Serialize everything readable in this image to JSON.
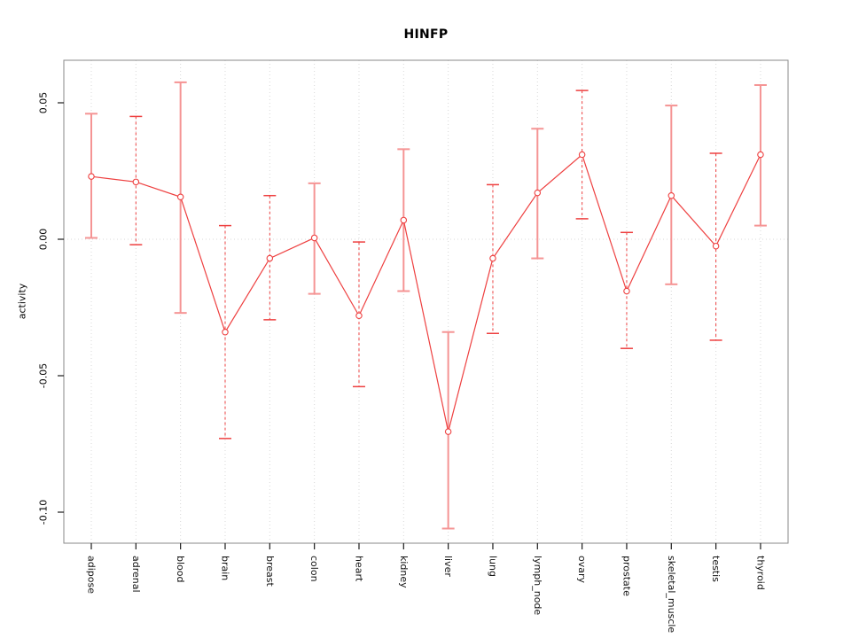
{
  "chart_data": {
    "type": "line",
    "title": "HINFP",
    "ylabel": "activity",
    "xlabel": "",
    "legend": "none",
    "grid": "vertical dotted gridline at each category; dotted horizontal line at y=0",
    "categories": [
      "adipose",
      "adrenal",
      "blood",
      "brain",
      "breast",
      "colon",
      "heart",
      "kidney",
      "liver",
      "lung",
      "lymph_node",
      "ovary",
      "prostate",
      "skeletal_muscle",
      "testis",
      "thyroid"
    ],
    "values": [
      0.023,
      0.021,
      0.0155,
      -0.034,
      -0.007,
      0.0005,
      -0.028,
      0.007,
      -0.0705,
      -0.007,
      0.017,
      0.031,
      -0.019,
      0.016,
      -0.0025,
      0.031
    ],
    "error_low": [
      0.0005,
      -0.002,
      -0.027,
      -0.073,
      -0.0295,
      -0.02,
      -0.054,
      -0.019,
      -0.106,
      -0.0345,
      -0.007,
      0.0075,
      -0.04,
      -0.0165,
      -0.037,
      0.005
    ],
    "error_high": [
      0.046,
      0.045,
      0.0575,
      0.005,
      0.016,
      0.0205,
      -0.001,
      0.033,
      -0.034,
      0.02,
      0.0405,
      0.0545,
      0.0025,
      0.049,
      0.0315,
      0.0565
    ],
    "error_bar_styles": [
      "solid",
      "dashed",
      "solid",
      "dashed",
      "dashed",
      "solid",
      "dashed",
      "solid",
      "solid",
      "dashed",
      "solid",
      "dashed",
      "dashed",
      "solid",
      "dashed",
      "solid"
    ],
    "yticks": [
      0.05,
      0.0,
      -0.05,
      -0.1
    ],
    "ytick_labels": [
      "0.05",
      "0.00",
      "-0.05",
      "-0.10"
    ],
    "ylim": [
      -0.111,
      0.066
    ],
    "marker": "open-circle",
    "colors": {
      "line": "#ee4040",
      "marker": "#ee4040",
      "error_solid": "#f59494",
      "error_dashed": "#ee4040",
      "grid": "#d8d8d8",
      "axis": "#1a1a1a",
      "plot_border": "#8a8a8a",
      "title": "#000000"
    }
  }
}
